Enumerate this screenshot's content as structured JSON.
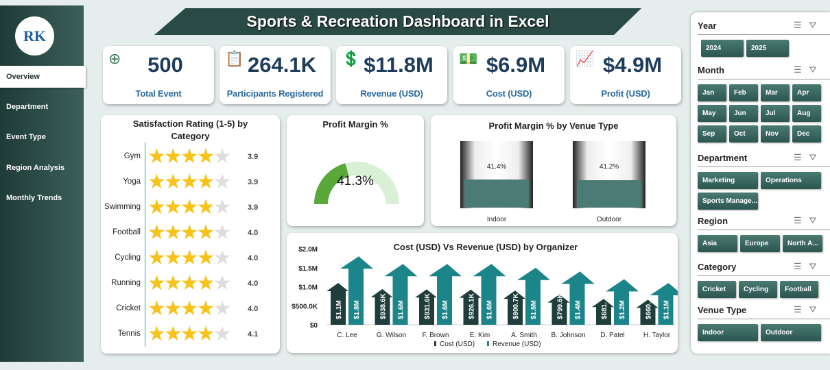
{
  "title": "Sports & Recreation Dashboard in Excel",
  "logo_text": "RK",
  "nav": [
    {
      "label": "Overview",
      "active": true
    },
    {
      "label": "Department"
    },
    {
      "label": "Event Type"
    },
    {
      "label": "Region Analysis"
    },
    {
      "label": "Monthly Trends"
    }
  ],
  "kpis": [
    {
      "value": "500",
      "label": "Total Event",
      "icon": "target-people-icon"
    },
    {
      "value": "264.1K",
      "label": "Participants Registered",
      "icon": "clipboard-icon"
    },
    {
      "value": "$11.8M",
      "label": "Revenue (USD)",
      "icon": "money-hand-icon"
    },
    {
      "value": "$6.9M",
      "label": "Cost (USD)",
      "icon": "cash-icon"
    },
    {
      "value": "$4.9M",
      "label": "Profit (USD)",
      "icon": "growth-chart-icon"
    }
  ],
  "satisfaction": {
    "title": "Satisfaction Rating (1-5) by Category",
    "rows": [
      {
        "category": "Gym",
        "rating": "3.9"
      },
      {
        "category": "Yoga",
        "rating": "3.9"
      },
      {
        "category": "Swimming",
        "rating": "3.9"
      },
      {
        "category": "Football",
        "rating": "4.0"
      },
      {
        "category": "Cycling",
        "rating": "4.0"
      },
      {
        "category": "Running",
        "rating": "4.0"
      },
      {
        "category": "Cricket",
        "rating": "4.0"
      },
      {
        "category": "Tennis",
        "rating": "4.1"
      }
    ]
  },
  "profit_margin": {
    "title": "Profit Margin %",
    "value": "41.3%",
    "fraction": 0.413
  },
  "venue": {
    "title": "Profit Margin % by Venue Type",
    "items": [
      {
        "name": "Indoor",
        "value": "41.4%",
        "fraction": 0.414
      },
      {
        "name": "Outdoor",
        "value": "41.2%",
        "fraction": 0.412
      }
    ]
  },
  "chart_data": {
    "type": "bar",
    "title": "Cost (USD) Vs Revenue (USD) by Organizer",
    "categories": [
      "C. Lee",
      "G. Wilson",
      "F. Brown",
      "E. Kim",
      "A. Smith",
      "B. Johnson",
      "D. Patel",
      "H. Taylor"
    ],
    "series": [
      {
        "name": "Cost (USD)",
        "color": "#1f3d3a",
        "values": [
          1100000,
          938600,
          931600,
          926100,
          900700,
          799600,
          681000,
          660000
        ],
        "labels": [
          "$1.1M",
          "$938.6K",
          "$931.6K",
          "$926.1K",
          "$900.7K",
          "$799.6K",
          "$681.",
          "$660."
        ]
      },
      {
        "name": "Revenue (USD)",
        "color": "#1b858a",
        "values": [
          1800000,
          1600000,
          1600000,
          1600000,
          1500000,
          1400000,
          1200000,
          1100000
        ],
        "labels": [
          "$1.8M",
          "$1.6M",
          "$1.6M",
          "$1.6M",
          "$1.5M",
          "$1.4M",
          "$1.2M",
          "$1.1M"
        ]
      }
    ],
    "yticks": [
      "$0",
      "$500.0K",
      "$1.0M",
      "$1.5M",
      "$2.0M"
    ],
    "ylim": [
      0,
      2000000
    ],
    "legend": "bottom"
  },
  "slicers": [
    {
      "title": "Year",
      "items": [
        "2024",
        "2025"
      ]
    },
    {
      "title": "Month",
      "items": [
        "Jan",
        "Feb",
        "Mar",
        "Apr",
        "May",
        "Jun",
        "Jul",
        "Aug",
        "Sep",
        "Oct",
        "Nov",
        "Dec"
      ]
    },
    {
      "title": "Department",
      "items": [
        "Marketing",
        "Operations",
        "Sports Manage..."
      ]
    },
    {
      "title": "Region",
      "items": [
        "Asia",
        "Europe",
        "North A..."
      ]
    },
    {
      "title": "Category",
      "items": [
        "Cricket",
        "Cycling",
        "Football"
      ]
    },
    {
      "title": "Venue Type",
      "items": [
        "Indoor",
        "Outdoor"
      ]
    }
  ]
}
